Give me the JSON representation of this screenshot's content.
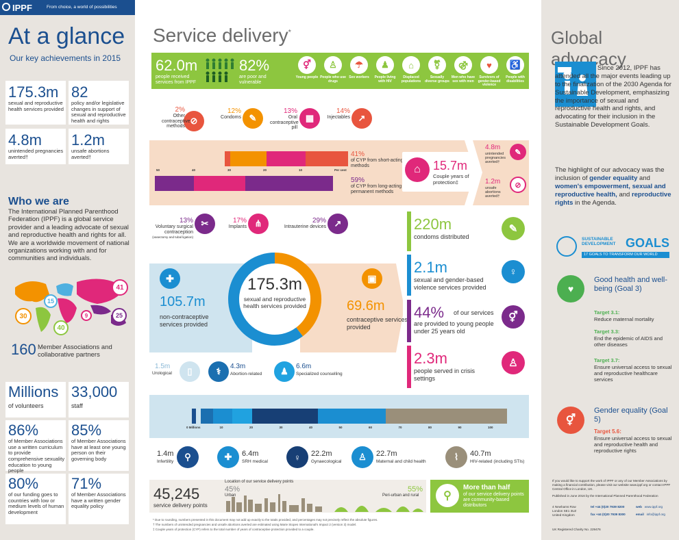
{
  "brand": {
    "logo": "IPPF",
    "tagline": "From choice, a world of possibilities"
  },
  "glance": {
    "title": "At a glance",
    "subtitle": "Our key achievements in 2015",
    "s1_value": "175.3m",
    "s1_label": "sexual and reproductive health services provided",
    "s2_value": "82",
    "s2_label": "policy and/or legislative changes in support of sexual and reproductive health and rights",
    "s3_value": "4.8m",
    "s3_label": "unintended pregnancies averted†",
    "s4_value": "1.2m",
    "s4_label": "unsafe abortions averted†"
  },
  "who": {
    "title": "Who we are",
    "text": "The International Planned Parenthood Federation (IPPF) is a global service provider and a leading advocate of sexual and reproductive health and rights for all. We are a worldwide movement of national organizations working with and for communities and individuals.",
    "map_labels": [
      "41",
      "15",
      "30",
      "9",
      "40",
      "25"
    ],
    "members_value": "160",
    "members_label": "Member Associations and collaborative partners"
  },
  "volunteers": {
    "v1": "Millions",
    "l1": "of volunteers",
    "v2": "33,000",
    "l2": "staff",
    "v3": "86%",
    "l3": "of Member Associations use a written curriculum to provide comprehensive sexuality education to young people",
    "v4": "85%",
    "l4": "of Member Associations have at least one young person on their governing body",
    "v5": "80%",
    "l5": "of our funding goes to countries with low or medium levels of human development",
    "v6": "71%",
    "l6": "of Member Associations have a written gender equality policy"
  },
  "service": {
    "title": "Service delivery",
    "star": "*",
    "people_value": "62.0m",
    "people_label": "people received services from IPPF",
    "poor_value": "82%",
    "poor_label": "are poor and vulnerable",
    "groups": [
      "Young people",
      "People who use drugs",
      "Sex workers",
      "People living with HIV",
      "Displaced populations",
      "Sexually diverse groups",
      "Men who have sex with men",
      "Survivors of gender-based violence",
      "People with disabilities"
    ]
  },
  "contra": {
    "short": [
      {
        "pct": "2%",
        "label": "Other contraceptive methods"
      },
      {
        "pct": "12%",
        "label": "Condoms"
      },
      {
        "pct": "13%",
        "label": "Oral contraceptive pill"
      },
      {
        "pct": "14%",
        "label": "Injectables"
      }
    ],
    "short_total_pct": "41%",
    "short_total_label": "of CYP from short-acting methods",
    "long_total_pct": "59%",
    "long_total_label": "of CYP from long-acting and permanent methods",
    "long": [
      {
        "pct": "13%",
        "label": "Voluntary surgical contraception",
        "note": "(vasectomy and tubal ligation)"
      },
      {
        "pct": "17%",
        "label": "Implants"
      },
      {
        "pct": "29%",
        "label": "Intrauterine devices"
      }
    ],
    "axis_ticks": [
      "50",
      "40",
      "30",
      "20",
      "10",
      "Per cent"
    ],
    "cyp_value": "15.7m",
    "cyp_label": "Couple years of protection‡",
    "preg_value": "4.8m",
    "preg_label": "unintended pregnancies averted†",
    "abort_value": "1.2m",
    "abort_label": "unsafe abortions averted†"
  },
  "donut": {
    "total_value": "175.3m",
    "total_label": "sexual and reproductive health services provided",
    "noncon_value": "105.7m",
    "noncon_label": "non-contraceptive services provided",
    "con_value": "69.6m",
    "con_label": "contraceptive services provided"
  },
  "side_stats": [
    {
      "value": "220m",
      "label": "condoms distributed",
      "color": "#8dc63f"
    },
    {
      "value": "2.1m",
      "label": "sexual and gender-based violence services provided",
      "color": "#1b8ed1"
    },
    {
      "value": "44%",
      "label_a": "of our services",
      "label_b": "are provided to young people under 25 years old",
      "color": "#7b2a8b"
    },
    {
      "value": "2.3m",
      "label": "people served in crisis settings",
      "color": "#e0287a"
    }
  ],
  "noncon": {
    "top": [
      {
        "value": "1.5m",
        "label": "Urological"
      },
      {
        "value": "4.3m",
        "label": "Abortion-related"
      },
      {
        "value": "6.6m",
        "label": "Specialized counselling"
      }
    ],
    "bottom": [
      {
        "value": "1.4m",
        "label": "Infertility"
      },
      {
        "value": "6.4m",
        "label": "SRH medical"
      },
      {
        "value": "22.2m",
        "label": "Gynaecological"
      },
      {
        "value": "22.7m",
        "label": "Maternal and child health"
      },
      {
        "value": "40.7m",
        "label": "HIV-related (including STIs)"
      }
    ],
    "axis": [
      "0 Millions",
      "10",
      "20",
      "30",
      "40",
      "50",
      "60",
      "70",
      "80",
      "90",
      "100"
    ]
  },
  "points": {
    "value": "45,245",
    "label": "service delivery points",
    "loc_title": "Location of our service delivery points",
    "urban_pct": "45%",
    "urban": "Urban",
    "rural_pct": "55%",
    "rural": "Peri-urban and rural",
    "cbd_title": "More than half",
    "cbd_label": "of our service delivery points are community-based distributors"
  },
  "footnotes": [
    "* Due to rounding, numbers presented in this document may not add up exactly to the totals provided, and percentages may not precisely reflect the absolute figures.",
    "† The numbers of unintended pregnancies and unsafe abortions averted are estimated using Marie Stopes International's Impact 2 (version 3) model.",
    "‡ Couple years of protection (CYP) refers to the total number of years of contraceptive protection provided to a couple."
  ],
  "advocacy": {
    "title": "Global advocacy",
    "p1": "Since 2012, IPPF has attended all the major events leading up to the finalization of the 2030 Agenda for Sustainable Development, emphasizing the importance of sexual and reproductive health and rights, and advocating for their inclusion in the Sustainable Development Goals.",
    "p2a": "The highlight of our advocacy was the inclusion of ",
    "p2b": "gender equality",
    "p2c": " and ",
    "p2d": "women's empowerment, sexual and reproductive health,",
    "p2e": " and ",
    "p2f": "reproductive rights",
    "p2g": " in the Agenda.",
    "sdg_a": "SUSTAINABLE",
    "sdg_b": "DEVELOPMENT",
    "sdg_c": "GOALS",
    "sdg_sub": "17 GOALS TO TRANSFORM OUR WORLD",
    "g3_title": "Good health and well-being (Goal 3)",
    "g3_targets": [
      {
        "t": "Target 3.1:",
        "d": "Reduce maternal mortality"
      },
      {
        "t": "Target 3.3:",
        "d": "End the epidemic of AIDS and other diseases"
      },
      {
        "t": "Target 3.7:",
        "d": "Ensure universal access to sexual and reproductive healthcare services"
      }
    ],
    "g5_title": "Gender equality (Goal 5)",
    "g5_target_t": "Target 5.6:",
    "g5_target_d": "Ensure universal access to sexual and reproductive health and reproductive rights",
    "support": "If you would like to support the work of IPPF or any of our Member Associations by making a financial contribution, please visit our website www.ippf.org or contact IPPF Central Office in London, UK.",
    "published": "Published in June 2016 by the International Planned Parenthood Federation",
    "address": [
      "4 Newhams Row",
      "London SE1 3UZ",
      "United Kingdom"
    ],
    "tel": "tel +44 (0)20 7939 8200",
    "fax": "fax +44 (0)20 7939 8300",
    "web": "www.ippf.org",
    "email": "info@ippf.org",
    "charity": "UK Registered Charity No. 229476"
  }
}
